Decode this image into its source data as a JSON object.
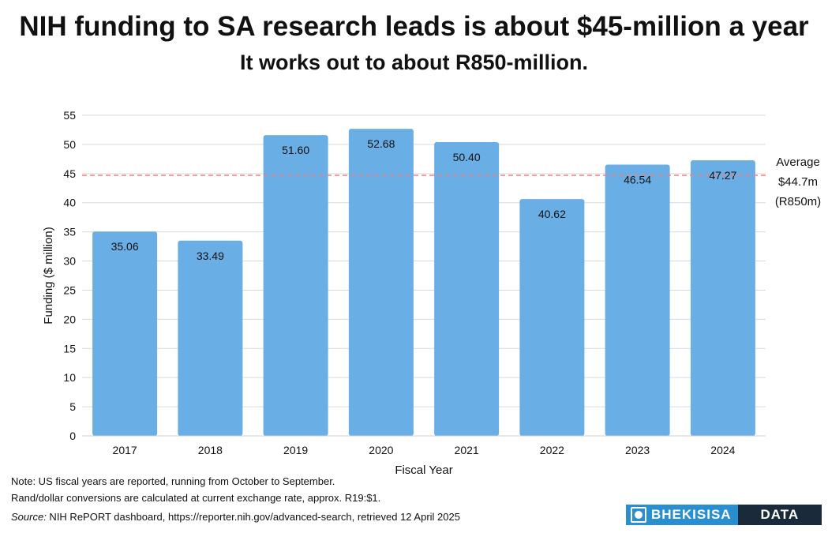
{
  "title": "NIH funding to SA research leads is about $45-million a year",
  "subtitle": "It works out to about R850-million.",
  "notes": [
    "Note: US fiscal years are reported, running from October to September.",
    "Rand/dollar conversions are calculated at current exchange rate, approx. R19:$1."
  ],
  "source_label": "Source:",
  "source_text": " NIH RePORT dashboard, https://reporter.nih.gov/advanced-search, retrieved 12 April 2025",
  "logo": {
    "left": "BHEKISISA",
    "right": "DATA"
  },
  "chart_data": {
    "type": "bar",
    "categories": [
      "2017",
      "2018",
      "2019",
      "2020",
      "2021",
      "2022",
      "2023",
      "2024"
    ],
    "values": [
      35.06,
      33.49,
      51.6,
      52.68,
      50.4,
      40.62,
      46.54,
      47.27
    ],
    "value_labels": [
      "35.06",
      "33.49",
      "51.60",
      "52.68",
      "50.40",
      "40.62",
      "46.54",
      "47.27"
    ],
    "xlabel": "Fiscal Year",
    "ylabel": "Funding ($ million)",
    "ylim": [
      0,
      55
    ],
    "yticks": [
      0,
      5,
      10,
      15,
      20,
      25,
      30,
      35,
      40,
      45,
      50,
      55
    ],
    "grid": true,
    "bar_color": "#6aaee6",
    "reference_line": {
      "value": 44.7,
      "style": "dashed",
      "color": "#f08080",
      "label_lines": [
        "Average",
        "$44.7m",
        "(R850m)"
      ]
    }
  }
}
